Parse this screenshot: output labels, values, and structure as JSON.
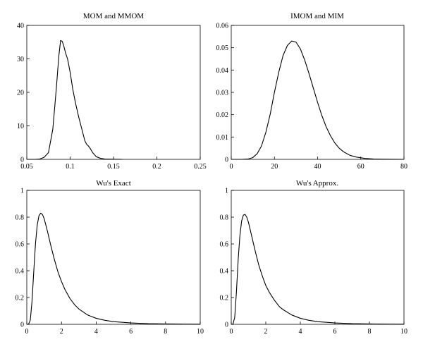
{
  "chart_data": [
    {
      "type": "line",
      "title": "MOM and MMOM",
      "xlim": [
        0.05,
        0.25
      ],
      "ylim": [
        0,
        40
      ],
      "xticks": [
        0.05,
        0.1,
        0.15,
        0.2,
        0.25
      ],
      "xtick_labels": [
        "0.05",
        "0.1",
        "0.15",
        "0.2",
        "0.25"
      ],
      "yticks": [
        0,
        10,
        20,
        30,
        40
      ],
      "ytick_labels": [
        "0",
        "10",
        "20",
        "30",
        "40"
      ],
      "grid": false,
      "series": [
        {
          "x": [
            0.05,
            0.06,
            0.065,
            0.07,
            0.075,
            0.08,
            0.084,
            0.087,
            0.089,
            0.091,
            0.093,
            0.095,
            0.097,
            0.1,
            0.103,
            0.106,
            0.11,
            0.114,
            0.117,
            0.119,
            0.121,
            0.123,
            0.126,
            0.13,
            0.135,
            0.14,
            0.15,
            0.16
          ],
          "y": [
            0,
            0,
            0.1,
            0.6,
            2,
            9,
            21,
            31,
            35.5,
            35.2,
            33.5,
            31.5,
            30,
            26,
            21,
            17,
            12.5,
            8.5,
            5.5,
            4.5,
            4,
            3.3,
            2,
            0.8,
            0.3,
            0.1,
            0.05,
            0
          ]
        }
      ]
    },
    {
      "type": "line",
      "title": "IMOM and MIM",
      "xlim": [
        0,
        80
      ],
      "ylim": [
        0,
        0.06
      ],
      "xticks": [
        0,
        20,
        40,
        60,
        80
      ],
      "xtick_labels": [
        "0",
        "20",
        "40",
        "60",
        "80"
      ],
      "yticks": [
        0,
        0.01,
        0.02,
        0.03,
        0.04,
        0.05,
        0.06
      ],
      "ytick_labels": [
        "0",
        "0.01",
        "0.02",
        "0.03",
        "0.04",
        "0.05",
        "0.06"
      ],
      "grid": false,
      "series": [
        {
          "x": [
            0,
            5,
            8,
            10,
            12,
            14,
            16,
            18,
            20,
            22,
            24,
            26,
            28,
            30,
            32,
            34,
            36,
            38,
            40,
            42,
            44,
            46,
            48,
            50,
            52,
            55,
            58,
            62,
            66,
            70,
            75,
            80
          ],
          "y": [
            0,
            0,
            0.0002,
            0.0008,
            0.0025,
            0.006,
            0.012,
            0.02,
            0.03,
            0.039,
            0.0465,
            0.051,
            0.053,
            0.0525,
            0.0495,
            0.0445,
            0.0385,
            0.032,
            0.0255,
            0.0195,
            0.0145,
            0.0105,
            0.0073,
            0.005,
            0.0034,
            0.0018,
            0.001,
            0.0004,
            0.00015,
            5e-05,
            1e-05,
            0
          ]
        }
      ]
    },
    {
      "type": "line",
      "title": "Wu's Exact",
      "xlim": [
        0,
        10
      ],
      "ylim": [
        0,
        1
      ],
      "xticks": [
        0,
        2,
        4,
        6,
        8,
        10
      ],
      "xtick_labels": [
        "0",
        "2",
        "4",
        "6",
        "8",
        "10"
      ],
      "yticks": [
        0,
        0.2,
        0.4,
        0.6,
        0.8,
        1
      ],
      "ytick_labels": [
        "0",
        "0.2",
        "0.4",
        "0.6",
        "0.8",
        "1"
      ],
      "grid": false,
      "series": [
        {
          "x": [
            0,
            0.1,
            0.2,
            0.3,
            0.4,
            0.5,
            0.6,
            0.7,
            0.8,
            0.9,
            1.0,
            1.2,
            1.4,
            1.6,
            1.8,
            2.0,
            2.2,
            2.5,
            2.8,
            3.0,
            3.5,
            4.0,
            4.5,
            5.0,
            6.0,
            7.0,
            8.0,
            9.0,
            10.0
          ],
          "y": [
            0,
            0.001,
            0.03,
            0.17,
            0.39,
            0.6,
            0.74,
            0.81,
            0.83,
            0.82,
            0.79,
            0.69,
            0.58,
            0.48,
            0.39,
            0.32,
            0.26,
            0.19,
            0.14,
            0.115,
            0.07,
            0.045,
            0.03,
            0.02,
            0.01,
            0.005,
            0.003,
            0.002,
            0.001
          ]
        }
      ]
    },
    {
      "type": "line",
      "title": "Wu's Approx.",
      "xlim": [
        0,
        10
      ],
      "ylim": [
        0,
        1
      ],
      "xticks": [
        0,
        2,
        4,
        6,
        8,
        10
      ],
      "xtick_labels": [
        "0",
        "2",
        "4",
        "6",
        "8",
        "10"
      ],
      "yticks": [
        0,
        0.2,
        0.4,
        0.6,
        0.8,
        1
      ],
      "ytick_labels": [
        "0",
        "0.2",
        "0.4",
        "0.6",
        "0.8",
        "1"
      ],
      "grid": false,
      "series": [
        {
          "x": [
            0,
            0.1,
            0.2,
            0.3,
            0.4,
            0.5,
            0.6,
            0.7,
            0.8,
            0.9,
            1.0,
            1.2,
            1.4,
            1.6,
            1.8,
            2.0,
            2.2,
            2.5,
            2.8,
            3.0,
            3.5,
            4.0,
            4.5,
            5.0,
            6.0,
            7.0,
            8.0,
            9.0,
            10.0
          ],
          "y": [
            0,
            0.002,
            0.05,
            0.24,
            0.48,
            0.66,
            0.77,
            0.815,
            0.82,
            0.8,
            0.76,
            0.65,
            0.54,
            0.44,
            0.36,
            0.29,
            0.24,
            0.18,
            0.13,
            0.11,
            0.07,
            0.045,
            0.03,
            0.02,
            0.01,
            0.005,
            0.003,
            0.002,
            0.001
          ]
        }
      ]
    }
  ]
}
